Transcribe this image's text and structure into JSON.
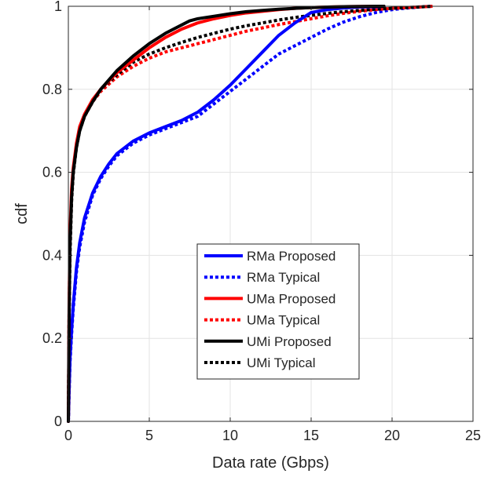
{
  "chart_data": {
    "type": "line",
    "title": "",
    "xlabel": "Data rate (Gbps)",
    "ylabel": "cdf",
    "xlim": [
      0,
      25
    ],
    "ylim": [
      0,
      1
    ],
    "xticks": [
      0,
      5,
      10,
      15,
      20,
      25
    ],
    "yticks": [
      0,
      0.2,
      0.4,
      0.6,
      0.8,
      1
    ],
    "xtick_labels": [
      "0",
      "5",
      "10",
      "15",
      "20",
      "25"
    ],
    "ytick_labels": [
      "0",
      "0.2",
      "0.4",
      "0.6",
      "0.8",
      "1"
    ],
    "grid": true,
    "legend_position": "lower-center",
    "series": [
      {
        "name": "RMa Proposed",
        "color": "#0000ff",
        "style": "solid",
        "x": [
          0,
          0.05,
          0.1,
          0.2,
          0.3,
          0.5,
          0.7,
          1.0,
          1.5,
          2.0,
          2.5,
          3.0,
          4.0,
          5.0,
          6.0,
          7.0,
          8.0,
          9.0,
          10.0,
          11.0,
          12.0,
          13.0,
          14.0,
          15.0,
          16.0,
          17.0,
          18.0,
          19.0,
          19.5
        ],
        "y": [
          0,
          0.08,
          0.15,
          0.22,
          0.28,
          0.37,
          0.43,
          0.49,
          0.55,
          0.59,
          0.62,
          0.645,
          0.675,
          0.695,
          0.71,
          0.725,
          0.745,
          0.775,
          0.81,
          0.85,
          0.89,
          0.93,
          0.96,
          0.985,
          0.992,
          0.996,
          0.998,
          0.999,
          1.0
        ]
      },
      {
        "name": "RMa Typical",
        "color": "#0000ff",
        "style": "dotted",
        "x": [
          0,
          0.05,
          0.1,
          0.2,
          0.3,
          0.5,
          0.7,
          1.0,
          1.5,
          2.0,
          2.5,
          3.0,
          4.0,
          5.0,
          6.0,
          7.0,
          8.0,
          9.0,
          10.0,
          11.0,
          12.0,
          13.0,
          14.0,
          15.0,
          16.0,
          17.0,
          18.0,
          19.0,
          20.0,
          21.0,
          22.0,
          22.5
        ],
        "y": [
          0,
          0.07,
          0.14,
          0.21,
          0.27,
          0.36,
          0.42,
          0.48,
          0.545,
          0.585,
          0.615,
          0.64,
          0.67,
          0.69,
          0.705,
          0.72,
          0.735,
          0.765,
          0.795,
          0.825,
          0.855,
          0.885,
          0.905,
          0.925,
          0.945,
          0.962,
          0.975,
          0.985,
          0.992,
          0.996,
          0.999,
          1.0
        ]
      },
      {
        "name": "UMa Proposed",
        "color": "#ff0000",
        "style": "solid",
        "x": [
          0,
          0.05,
          0.1,
          0.2,
          0.3,
          0.5,
          0.7,
          1.0,
          1.5,
          2.0,
          3.0,
          4.0,
          5.0,
          6.0,
          7.0,
          8.0,
          9.0,
          10.0,
          11.0,
          12.0,
          13.0,
          14.0,
          15.0,
          16.0,
          17.0,
          18.0,
          19.0,
          19.5
        ],
        "y": [
          0,
          0.3,
          0.45,
          0.56,
          0.61,
          0.67,
          0.71,
          0.74,
          0.775,
          0.8,
          0.84,
          0.87,
          0.9,
          0.925,
          0.945,
          0.96,
          0.97,
          0.978,
          0.984,
          0.988,
          0.992,
          0.995,
          0.997,
          0.998,
          0.999,
          0.9995,
          1.0,
          1.0
        ]
      },
      {
        "name": "UMa Typical",
        "color": "#ff0000",
        "style": "dotted",
        "x": [
          0,
          0.05,
          0.1,
          0.2,
          0.3,
          0.5,
          0.7,
          1.0,
          1.5,
          2.0,
          3.0,
          4.0,
          5.0,
          6.0,
          7.0,
          8.0,
          9.0,
          10.0,
          11.0,
          12.0,
          13.0,
          14.0,
          15.0,
          16.0,
          17.0,
          18.0,
          19.0,
          20.0,
          21.0,
          22.0,
          22.5
        ],
        "y": [
          0,
          0.28,
          0.43,
          0.54,
          0.6,
          0.665,
          0.705,
          0.735,
          0.77,
          0.795,
          0.83,
          0.855,
          0.875,
          0.89,
          0.9,
          0.91,
          0.92,
          0.93,
          0.94,
          0.948,
          0.956,
          0.963,
          0.97,
          0.977,
          0.983,
          0.988,
          0.992,
          0.995,
          0.997,
          0.999,
          1.0
        ]
      },
      {
        "name": "UMi Proposed",
        "color": "#000000",
        "style": "solid",
        "x": [
          0,
          0.05,
          0.1,
          0.2,
          0.3,
          0.5,
          0.7,
          1.0,
          1.5,
          2.0,
          3.0,
          4.0,
          5.0,
          6.0,
          7.0,
          7.5,
          8.0,
          9.0,
          10.0,
          11.0,
          12.0,
          13.0,
          14.0,
          15.0,
          16.0,
          17.0,
          18.0,
          19.0,
          19.5
        ],
        "y": [
          0,
          0.27,
          0.42,
          0.54,
          0.6,
          0.66,
          0.7,
          0.735,
          0.77,
          0.8,
          0.845,
          0.88,
          0.91,
          0.935,
          0.955,
          0.965,
          0.97,
          0.976,
          0.982,
          0.987,
          0.99,
          0.993,
          0.995,
          0.997,
          0.998,
          0.999,
          0.9995,
          1.0,
          1.0
        ]
      },
      {
        "name": "UMi Typical",
        "color": "#000000",
        "style": "dotted",
        "x": [
          0,
          0.05,
          0.1,
          0.2,
          0.3,
          0.5,
          0.7,
          1.0,
          1.5,
          2.0,
          3.0,
          4.0,
          5.0,
          6.0,
          7.0,
          8.0,
          9.0,
          10.0,
          11.0,
          12.0,
          13.0,
          14.0,
          15.0,
          16.0,
          17.0,
          18.0,
          19.0,
          20.0,
          21.0,
          22.0,
          22.5
        ],
        "y": [
          0,
          0.25,
          0.4,
          0.53,
          0.595,
          0.66,
          0.7,
          0.735,
          0.77,
          0.8,
          0.835,
          0.865,
          0.885,
          0.9,
          0.913,
          0.925,
          0.935,
          0.945,
          0.953,
          0.96,
          0.967,
          0.973,
          0.978,
          0.983,
          0.987,
          0.99,
          0.993,
          0.995,
          0.997,
          0.999,
          1.0
        ]
      }
    ]
  }
}
